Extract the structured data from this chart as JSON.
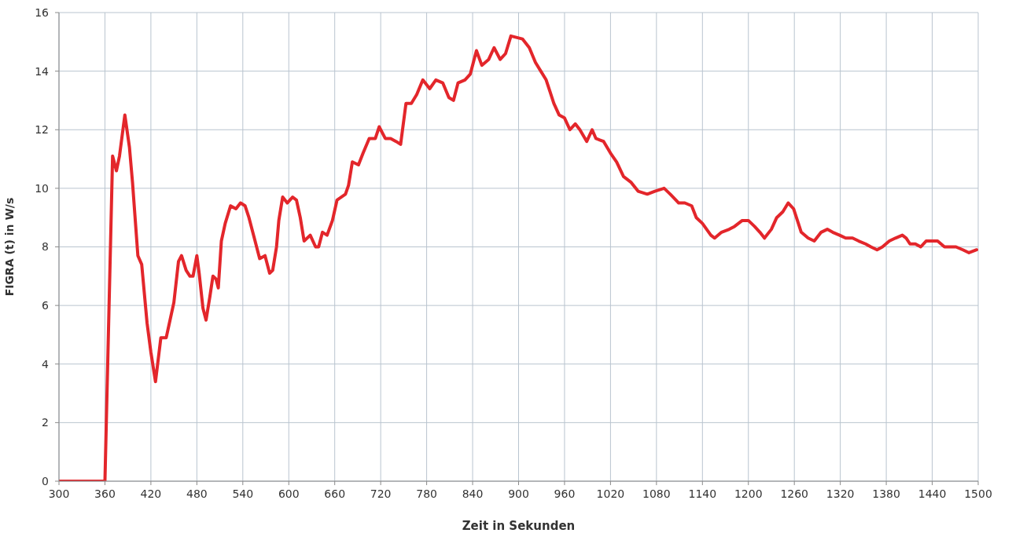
{
  "chart_data": {
    "type": "line",
    "xlabel": "Zeit in Sekunden",
    "ylabel": "FIGRA (t) in W/s",
    "x": [
      300,
      360,
      370,
      375,
      379,
      386,
      392,
      396,
      403,
      408,
      415,
      420,
      426,
      433,
      440,
      445,
      450,
      456,
      460,
      466,
      471,
      475,
      480,
      483,
      488,
      492,
      497,
      501,
      505,
      508,
      512,
      517,
      524,
      531,
      537,
      543,
      548,
      555,
      562,
      569,
      575,
      579,
      584,
      587,
      592,
      598,
      605,
      610,
      615,
      620,
      628,
      635,
      639,
      644,
      650,
      657,
      663,
      674,
      678,
      683,
      691,
      697,
      705,
      713,
      718,
      726,
      733,
      740,
      746,
      753,
      760,
      767,
      775,
      784,
      792,
      801,
      809,
      815,
      821,
      830,
      837,
      845,
      852,
      861,
      868,
      876,
      883,
      890,
      905,
      914,
      922,
      929,
      936,
      941,
      946,
      953,
      960,
      967,
      974,
      980,
      989,
      996,
      1001,
      1011,
      1020,
      1028,
      1037,
      1047,
      1056,
      1068,
      1078,
      1090,
      1098,
      1109,
      1117,
      1126,
      1132,
      1140,
      1151,
      1156,
      1165,
      1175,
      1182,
      1192,
      1200,
      1208,
      1215,
      1221,
      1230,
      1237,
      1245,
      1252,
      1259,
      1264,
      1269,
      1278,
      1286,
      1295,
      1303,
      1310,
      1319,
      1327,
      1336,
      1344,
      1353,
      1360,
      1368,
      1375,
      1384,
      1392,
      1401,
      1406,
      1411,
      1418,
      1425,
      1432,
      1440,
      1447,
      1456,
      1462,
      1471,
      1480,
      1488,
      1498
    ],
    "series": [
      {
        "color": "#e3262b",
        "values": [
          0,
          0,
          11.1,
          10.6,
          11.1,
          12.5,
          11.4,
          10.2,
          7.7,
          7.4,
          5.4,
          4.4,
          3.4,
          4.9,
          4.9,
          5.5,
          6.1,
          7.5,
          7.7,
          7.2,
          7.0,
          7.0,
          7.7,
          7.1,
          5.9,
          5.5,
          6.3,
          7.0,
          6.9,
          6.6,
          8.2,
          8.8,
          9.4,
          9.3,
          9.5,
          9.4,
          9.0,
          8.3,
          7.6,
          7.7,
          7.1,
          7.2,
          8.0,
          8.9,
          9.7,
          9.5,
          9.7,
          9.6,
          9.0,
          8.2,
          8.4,
          8.0,
          8.0,
          8.5,
          8.4,
          8.9,
          9.6,
          9.8,
          10.1,
          10.9,
          10.8,
          11.2,
          11.7,
          11.7,
          12.1,
          11.7,
          11.7,
          11.6,
          11.5,
          12.9,
          12.9,
          13.2,
          13.7,
          13.4,
          13.7,
          13.6,
          13.1,
          13.0,
          13.6,
          13.7,
          13.9,
          14.7,
          14.2,
          14.4,
          14.8,
          14.4,
          14.6,
          15.2,
          15.1,
          14.8,
          14.3,
          14.0,
          13.7,
          13.3,
          12.9,
          12.5,
          12.4,
          12.0,
          12.2,
          12.0,
          11.6,
          12.0,
          11.7,
          11.6,
          11.2,
          10.9,
          10.4,
          10.2,
          9.9,
          9.8,
          9.9,
          10.0,
          9.8,
          9.5,
          9.5,
          9.4,
          9.0,
          8.8,
          8.4,
          8.3,
          8.5,
          8.6,
          8.7,
          8.9,
          8.9,
          8.7,
          8.5,
          8.3,
          8.6,
          9.0,
          9.2,
          9.5,
          9.3,
          8.9,
          8.5,
          8.3,
          8.2,
          8.5,
          8.6,
          8.5,
          8.4,
          8.3,
          8.3,
          8.2,
          8.1,
          8.0,
          7.9,
          8.0,
          8.2,
          8.3,
          8.4,
          8.3,
          8.1,
          8.1,
          8.0,
          8.2,
          8.2,
          8.2,
          8.0,
          8.0,
          8.0,
          7.9,
          7.8,
          7.9
        ]
      }
    ],
    "xlim": [
      300,
      1500
    ],
    "ylim": [
      0,
      16
    ],
    "xticks": [
      300,
      360,
      420,
      480,
      540,
      600,
      660,
      720,
      780,
      840,
      900,
      960,
      1020,
      1080,
      1140,
      1200,
      1260,
      1320,
      1380,
      1440,
      1500
    ],
    "yticks": [
      0,
      2,
      4,
      6,
      8,
      10,
      12,
      14,
      16
    ],
    "grid": true,
    "line_style": "solid"
  }
}
